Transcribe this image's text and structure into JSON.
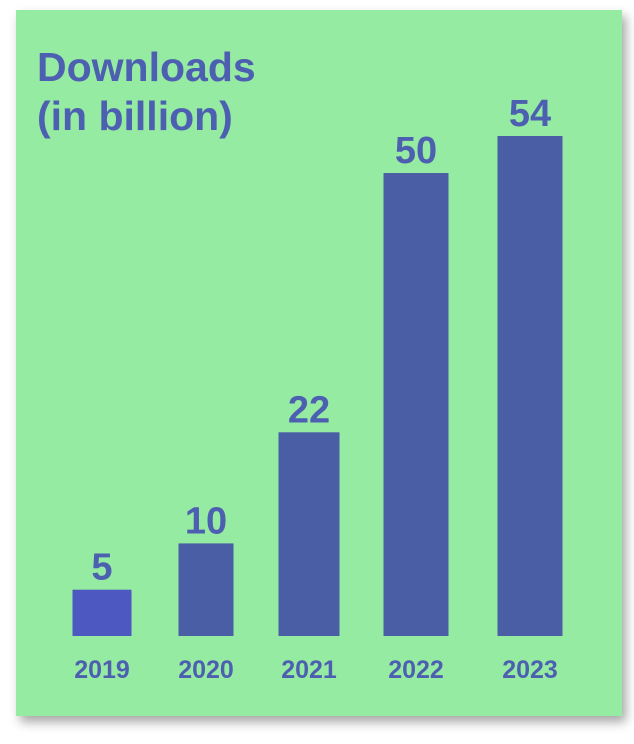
{
  "colors": {
    "panel_background": "#96eba2",
    "bar_primary": "#4a5ea6",
    "bar_first": "#4d58c0",
    "text": "#4d5fb0"
  },
  "chart_data": {
    "type": "bar",
    "title_lines": [
      "Downloads",
      "(in billion)"
    ],
    "categories": [
      "2019",
      "2020",
      "2021",
      "2022",
      "2023"
    ],
    "values": [
      5,
      10,
      22,
      50,
      54
    ],
    "data_labels": [
      "5",
      "10",
      "22",
      "50",
      "54"
    ],
    "ylim": [
      0,
      54
    ],
    "grid": false,
    "axes_visible": false,
    "legend": "none"
  }
}
